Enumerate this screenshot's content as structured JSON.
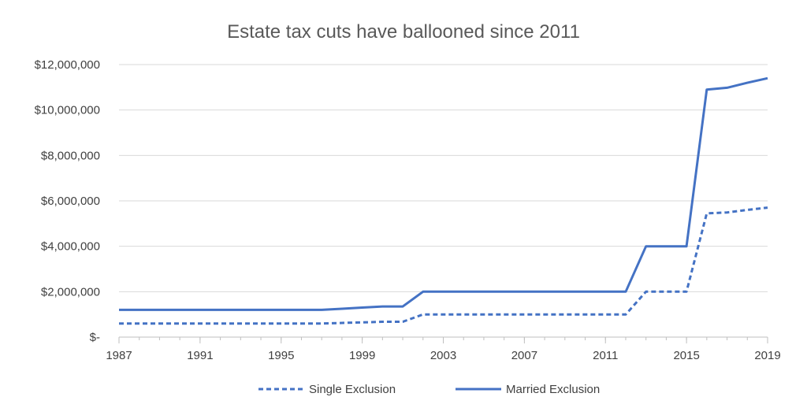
{
  "chart_data": {
    "type": "line",
    "title": "Estate tax cuts have ballooned since 2011",
    "xlabel": "",
    "ylabel": "",
    "xlim": [
      1987,
      2019
    ],
    "ylim": [
      0,
      12000000
    ],
    "x_ticks": [
      "1987",
      "1991",
      "1995",
      "1999",
      "2003",
      "2007",
      "2011",
      "2015",
      "2019"
    ],
    "y_ticks": [
      "$-",
      "$2,000,000",
      "$4,000,000",
      "$6,000,000",
      "$8,000,000",
      "$10,000,000",
      "$12,000,000"
    ],
    "grid": true,
    "legend_position": "bottom",
    "color": "#4472C4",
    "x": [
      1987,
      1988,
      1989,
      1990,
      1991,
      1992,
      1993,
      1994,
      1995,
      1996,
      1997,
      1998,
      1999,
      2000,
      2001,
      2002,
      2003,
      2004,
      2005,
      2006,
      2007,
      2008,
      2009,
      2010,
      2011,
      2012,
      2013,
      2014,
      2015,
      2016,
      2017,
      2018,
      2019
    ],
    "series": [
      {
        "name": "Single Exclusion",
        "style": "dashed",
        "values": [
          600000,
          600000,
          600000,
          600000,
          600000,
          600000,
          600000,
          600000,
          600000,
          600000,
          600000,
          625000,
          650000,
          675000,
          675000,
          1000000,
          1000000,
          1000000,
          1000000,
          1000000,
          1000000,
          1000000,
          1000000,
          1000000,
          1000000,
          1000000,
          2000000,
          2000000,
          2000000,
          5450000,
          5490000,
          5600000,
          5700000
        ]
      },
      {
        "name": "Married Exclusion",
        "style": "solid",
        "values": [
          1200000,
          1200000,
          1200000,
          1200000,
          1200000,
          1200000,
          1200000,
          1200000,
          1200000,
          1200000,
          1200000,
          1250000,
          1300000,
          1350000,
          1350000,
          2000000,
          2000000,
          2000000,
          2000000,
          2000000,
          2000000,
          2000000,
          2000000,
          2000000,
          2000000,
          2000000,
          4000000,
          4000000,
          4000000,
          10900000,
          10980000,
          11200000,
          11400000
        ]
      }
    ]
  }
}
